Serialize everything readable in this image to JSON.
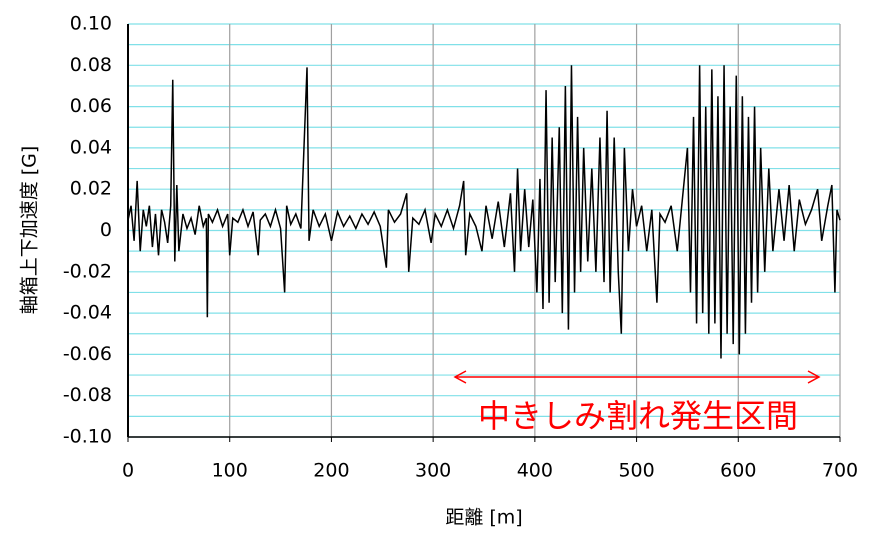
{
  "chart_data": {
    "type": "line",
    "ylabel": "軸箱上下加速度 [G]",
    "xlabel": "距離 [m]",
    "annotation": {
      "text": "中きしみ割れ発生区間",
      "color": "#ff0000"
    },
    "color": "#000000",
    "grid": true,
    "ygrid_color": "#80e0e8",
    "xgrid_color": "#a0a0a0",
    "xlim": [
      0,
      700
    ],
    "xticks": [
      0,
      100,
      200,
      300,
      400,
      500,
      600,
      700
    ],
    "ylim": [
      -0.1,
      0.1
    ],
    "yticks": [
      {
        "value": -0.1,
        "label": "-0.10"
      },
      -0.08,
      -0.06,
      -0.04,
      -0.02,
      0,
      0.02,
      0.04,
      0.06,
      0.08,
      {
        "value": 0.1,
        "label": "0.10"
      }
    ],
    "yminor_ticks": [
      -0.09,
      -0.07,
      -0.05,
      -0.03,
      -0.01,
      0.01,
      0.03,
      0.05,
      0.07,
      0.09
    ],
    "x": [
      0,
      3,
      6,
      9,
      12,
      15,
      18,
      21,
      24,
      27,
      30,
      33,
      36,
      39,
      42,
      44,
      46,
      48,
      50,
      54,
      58,
      62,
      66,
      70,
      74,
      77,
      78,
      79,
      83,
      88,
      93,
      98,
      100,
      103,
      108,
      113,
      118,
      123,
      128,
      130,
      135,
      140,
      145,
      150,
      154,
      156,
      160,
      165,
      170,
      176,
      178,
      182,
      188,
      194,
      200,
      206,
      212,
      218,
      224,
      230,
      236,
      242,
      248,
      254,
      256,
      262,
      268,
      274,
      276,
      280,
      286,
      292,
      298,
      302,
      308,
      314,
      320,
      326,
      330,
      332,
      336,
      342,
      348,
      352,
      358,
      364,
      370,
      376,
      380,
      383,
      386,
      390,
      394,
      398,
      402,
      405,
      408,
      411,
      414,
      417,
      420,
      424,
      427,
      430,
      433,
      436,
      439,
      442,
      445,
      448,
      452,
      456,
      460,
      464,
      468,
      471,
      474,
      478,
      482,
      485,
      488,
      492,
      496,
      500,
      505,
      510,
      515,
      520,
      523,
      528,
      534,
      540,
      546,
      550,
      553,
      556,
      559,
      562,
      565,
      568,
      571,
      574,
      577,
      580,
      583,
      586,
      589,
      592,
      595,
      598,
      601,
      604,
      607,
      610,
      613,
      616,
      619,
      622,
      626,
      630,
      634,
      640,
      645,
      650,
      655,
      660,
      666,
      672,
      678,
      682,
      688,
      692,
      695,
      697,
      700
    ],
    "values": [
      0.005,
      0.012,
      -0.005,
      0.024,
      -0.01,
      0.01,
      0.002,
      0.012,
      -0.008,
      0.008,
      -0.012,
      0.01,
      0.004,
      -0.006,
      0.012,
      0.073,
      -0.015,
      0.022,
      -0.01,
      0.008,
      0.001,
      0.006,
      -0.002,
      0.012,
      0.002,
      0.006,
      -0.042,
      0.008,
      0.004,
      0.01,
      0.002,
      0.008,
      -0.012,
      0.006,
      0.004,
      0.01,
      0.002,
      0.009,
      -0.012,
      0.005,
      0.008,
      0.002,
      0.01,
      0.001,
      -0.03,
      0.012,
      0.003,
      0.008,
      0.001,
      0.079,
      -0.005,
      0.01,
      0.002,
      0.008,
      -0.005,
      0.009,
      0.002,
      0.007,
      0.001,
      0.008,
      0.003,
      0.009,
      0.002,
      -0.018,
      0.01,
      0.004,
      0.008,
      0.018,
      -0.02,
      0.006,
      0.003,
      0.01,
      -0.006,
      0.008,
      0.002,
      0.01,
      0.001,
      0.012,
      0.024,
      -0.012,
      0.008,
      0.002,
      -0.01,
      0.012,
      -0.004,
      0.014,
      -0.008,
      0.018,
      -0.02,
      0.03,
      -0.01,
      0.02,
      -0.008,
      0.015,
      -0.03,
      0.025,
      -0.038,
      0.068,
      -0.035,
      0.045,
      -0.025,
      0.05,
      -0.04,
      0.07,
      -0.048,
      0.08,
      -0.03,
      0.055,
      -0.02,
      0.04,
      -0.015,
      0.03,
      -0.02,
      0.045,
      -0.025,
      0.058,
      -0.03,
      0.045,
      -0.02,
      -0.05,
      0.04,
      -0.01,
      0.02,
      0.002,
      0.012,
      -0.01,
      0.01,
      -0.035,
      0.008,
      0.004,
      0.012,
      -0.01,
      0.02,
      0.04,
      -0.03,
      0.055,
      -0.045,
      0.08,
      -0.04,
      0.06,
      -0.05,
      0.078,
      -0.045,
      0.065,
      -0.062,
      0.08,
      -0.05,
      0.06,
      -0.055,
      0.075,
      -0.06,
      0.065,
      -0.05,
      0.055,
      -0.035,
      0.06,
      -0.03,
      0.04,
      -0.02,
      0.03,
      -0.01,
      0.02,
      -0.005,
      0.022,
      -0.01,
      0.015,
      0.003,
      0.01,
      0.02,
      -0.005,
      0.012,
      0.022,
      -0.03,
      0.01,
      0.005
    ]
  }
}
